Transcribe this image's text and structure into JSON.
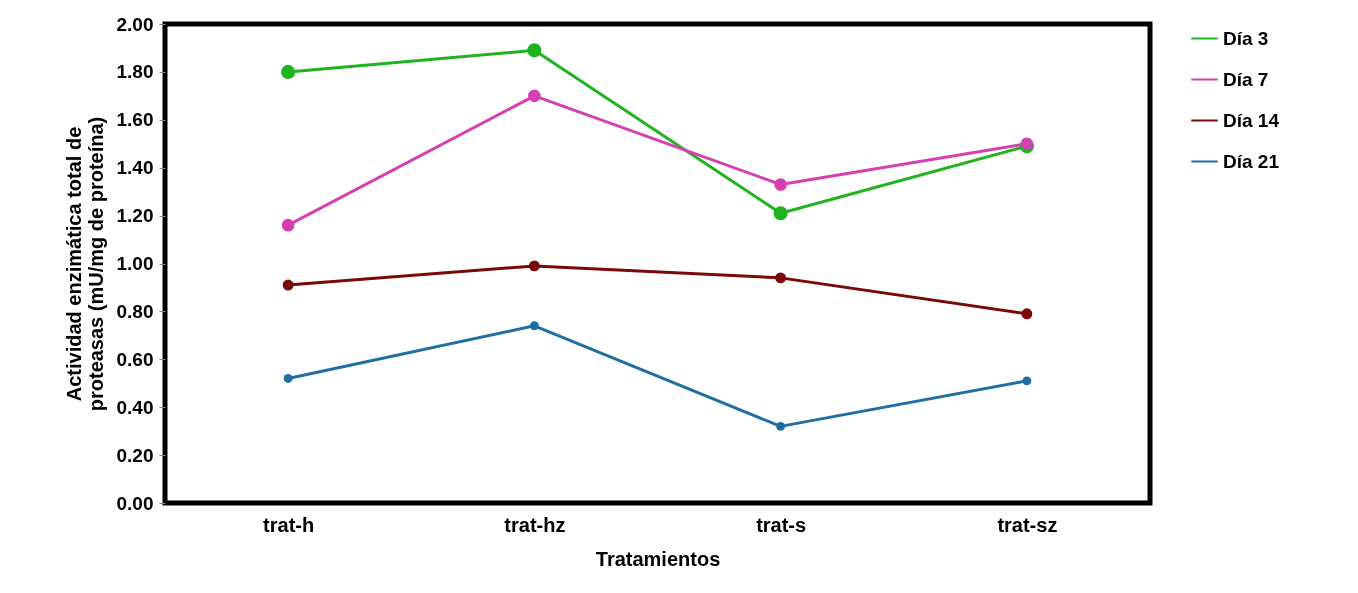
{
  "chart_data": {
    "type": "line",
    "xlabel": "Tratamientos",
    "ylabel": "Actividad enzimática total de\nproteasas (mU/mg de proteína)",
    "categories": [
      "trat-h",
      "trat-hz",
      "trat-s",
      "trat-sz"
    ],
    "series": [
      {
        "name": "Día 3",
        "color": "#1fb41f",
        "values": [
          1.8,
          1.89,
          1.21,
          1.49
        ]
      },
      {
        "name": "Día 7",
        "color": "#d63fb0",
        "values": [
          1.16,
          1.7,
          1.33,
          1.5
        ]
      },
      {
        "name": "Día 14",
        "color": "#7a0a0a",
        "values": [
          0.91,
          0.99,
          0.94,
          0.79
        ]
      },
      {
        "name": "Día 21",
        "color": "#1f6fa3",
        "values": [
          0.52,
          0.74,
          0.32,
          0.51
        ]
      }
    ],
    "ylim": [
      0,
      2
    ],
    "yticks": [
      {
        "value": 0,
        "label": "0.00"
      },
      {
        "value": 0.2,
        "label": "0.20"
      },
      {
        "value": 0.4,
        "label": "0.40"
      },
      {
        "value": 0.6,
        "label": "0.60"
      },
      {
        "value": 0.8,
        "label": "0.80"
      },
      {
        "value": 1,
        "label": "1.00"
      },
      {
        "value": 1.2,
        "label": "1.20"
      },
      {
        "value": 1.4,
        "label": "1.40"
      },
      {
        "value": 1.6,
        "label": "1.60"
      },
      {
        "value": 1.8,
        "label": "1.80"
      },
      {
        "value": 2,
        "label": "2.00"
      }
    ],
    "grid": false,
    "legend": "right",
    "marker": "circle",
    "line_style": "solid"
  }
}
